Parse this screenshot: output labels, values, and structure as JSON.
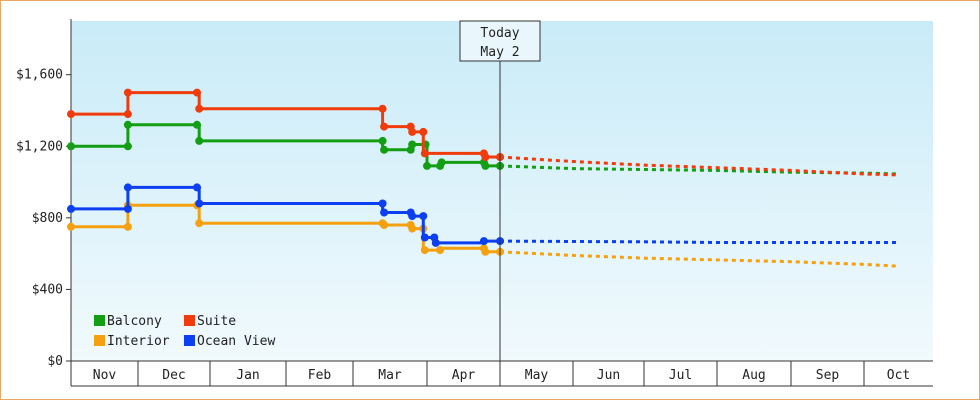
{
  "chart_data": {
    "type": "line",
    "title": "",
    "xlabel": "",
    "ylabel": "",
    "ylim": [
      0,
      1900
    ],
    "y_ticks": [
      "$0",
      "$400",
      "$800",
      "$1,200",
      "$1,600"
    ],
    "y_tick_values": [
      0,
      400,
      800,
      1200,
      1600
    ],
    "x_months": [
      "Nov",
      "Dec",
      "Jan",
      "Feb",
      "Mar",
      "Apr",
      "May",
      "Jun",
      "Jul",
      "Aug",
      "Sep",
      "Oct"
    ],
    "today": {
      "line1": "Today",
      "line2": "May 2",
      "month_index": 6.0
    },
    "series": [
      {
        "name": "Balcony",
        "color": "#139e13",
        "history": [
          [
            0,
            1200
          ],
          [
            0.85,
            1200
          ],
          [
            0.85,
            1320
          ],
          [
            1.85,
            1320
          ],
          [
            1.85,
            1230
          ],
          [
            4.4,
            1230
          ],
          [
            4.4,
            1180
          ],
          [
            4.8,
            1180
          ],
          [
            4.8,
            1210
          ],
          [
            5,
            1210
          ],
          [
            5,
            1090
          ],
          [
            5.2,
            1090
          ],
          [
            5.2,
            1110
          ],
          [
            5.8,
            1110
          ],
          [
            5.8,
            1090
          ],
          [
            6,
            1090
          ]
        ],
        "markers": [
          [
            0,
            1200
          ],
          [
            0.85,
            1200
          ],
          [
            0.85,
            1320
          ],
          [
            1.82,
            1320
          ],
          [
            1.85,
            1230
          ],
          [
            4.4,
            1230
          ],
          [
            4.42,
            1180
          ],
          [
            4.78,
            1180
          ],
          [
            4.8,
            1210
          ],
          [
            4.98,
            1210
          ],
          [
            5,
            1090
          ],
          [
            5.18,
            1090
          ],
          [
            5.2,
            1110
          ],
          [
            5.78,
            1110
          ],
          [
            5.8,
            1090
          ],
          [
            6,
            1090
          ]
        ],
        "forecast": [
          [
            6,
            1090
          ],
          [
            7,
            1075
          ],
          [
            8,
            1070
          ],
          [
            9,
            1065
          ],
          [
            10,
            1055
          ],
          [
            11,
            1050
          ],
          [
            11.5,
            1045
          ]
        ]
      },
      {
        "name": "Suite",
        "color": "#f03c0c",
        "history": [
          [
            0,
            1380
          ],
          [
            0.85,
            1380
          ],
          [
            0.85,
            1500
          ],
          [
            1.85,
            1500
          ],
          [
            1.85,
            1410
          ],
          [
            4.4,
            1410
          ],
          [
            4.4,
            1310
          ],
          [
            4.8,
            1310
          ],
          [
            4.8,
            1280
          ],
          [
            4.95,
            1280
          ],
          [
            4.95,
            1160
          ],
          [
            5.8,
            1160
          ],
          [
            5.8,
            1140
          ],
          [
            6,
            1140
          ]
        ],
        "markers": [
          [
            0,
            1380
          ],
          [
            0.85,
            1380
          ],
          [
            0.85,
            1500
          ],
          [
            1.82,
            1500
          ],
          [
            1.85,
            1410
          ],
          [
            4.4,
            1410
          ],
          [
            4.42,
            1310
          ],
          [
            4.78,
            1310
          ],
          [
            4.8,
            1280
          ],
          [
            4.95,
            1280
          ],
          [
            4.97,
            1160
          ],
          [
            5.78,
            1160
          ],
          [
            5.8,
            1140
          ],
          [
            6,
            1140
          ]
        ],
        "forecast": [
          [
            6,
            1140
          ],
          [
            7,
            1115
          ],
          [
            8,
            1095
          ],
          [
            9,
            1080
          ],
          [
            10,
            1065
          ],
          [
            11,
            1045
          ],
          [
            11.5,
            1040
          ]
        ]
      },
      {
        "name": "Interior",
        "color": "#f5a10f",
        "history": [
          [
            0,
            750
          ],
          [
            0.85,
            750
          ],
          [
            0.85,
            870
          ],
          [
            1.85,
            870
          ],
          [
            1.85,
            770
          ],
          [
            4.4,
            770
          ],
          [
            4.4,
            760
          ],
          [
            4.8,
            760
          ],
          [
            4.8,
            740
          ],
          [
            4.95,
            740
          ],
          [
            4.95,
            620
          ],
          [
            5.2,
            620
          ],
          [
            5.2,
            630
          ],
          [
            5.8,
            630
          ],
          [
            5.8,
            610
          ],
          [
            6,
            610
          ]
        ],
        "markers": [
          [
            0,
            750
          ],
          [
            0.85,
            750
          ],
          [
            0.85,
            870
          ],
          [
            1.82,
            870
          ],
          [
            1.85,
            770
          ],
          [
            4.4,
            770
          ],
          [
            4.42,
            760
          ],
          [
            4.78,
            760
          ],
          [
            4.8,
            740
          ],
          [
            4.95,
            740
          ],
          [
            4.97,
            620
          ],
          [
            5.18,
            620
          ],
          [
            5.78,
            630
          ],
          [
            5.8,
            610
          ],
          [
            6,
            610
          ]
        ],
        "forecast": [
          [
            6,
            610
          ],
          [
            7,
            590
          ],
          [
            8,
            575
          ],
          [
            9,
            565
          ],
          [
            10,
            555
          ],
          [
            11,
            540
          ],
          [
            11.5,
            530
          ]
        ]
      },
      {
        "name": "Ocean View",
        "color": "#0b3ff0",
        "history": [
          [
            0,
            850
          ],
          [
            0.85,
            850
          ],
          [
            0.85,
            970
          ],
          [
            1.85,
            970
          ],
          [
            1.85,
            880
          ],
          [
            4.4,
            880
          ],
          [
            4.4,
            830
          ],
          [
            4.8,
            830
          ],
          [
            4.8,
            810
          ],
          [
            4.95,
            810
          ],
          [
            4.95,
            690
          ],
          [
            5.1,
            690
          ],
          [
            5.1,
            660
          ],
          [
            5.8,
            660
          ],
          [
            5.8,
            670
          ],
          [
            6,
            670
          ]
        ],
        "markers": [
          [
            0,
            850
          ],
          [
            0.85,
            850
          ],
          [
            0.85,
            970
          ],
          [
            1.82,
            970
          ],
          [
            1.85,
            880
          ],
          [
            4.4,
            880
          ],
          [
            4.42,
            830
          ],
          [
            4.78,
            830
          ],
          [
            4.8,
            810
          ],
          [
            4.95,
            810
          ],
          [
            4.97,
            690
          ],
          [
            5.1,
            690
          ],
          [
            5.12,
            660
          ],
          [
            5.78,
            670
          ],
          [
            6,
            670
          ]
        ],
        "forecast": [
          [
            6,
            670
          ],
          [
            7,
            668
          ],
          [
            8,
            666
          ],
          [
            9,
            662
          ],
          [
            10,
            662
          ],
          [
            11,
            662
          ],
          [
            11.5,
            662
          ]
        ]
      }
    ],
    "legend": [
      {
        "name": "Balcony",
        "color": "#139e13"
      },
      {
        "name": "Suite",
        "color": "#f03c0c"
      },
      {
        "name": "Interior",
        "color": "#f5a10f"
      },
      {
        "name": "Ocean View",
        "color": "#0b3ff0"
      }
    ],
    "grid": false,
    "legend_position": "bottom-left"
  }
}
